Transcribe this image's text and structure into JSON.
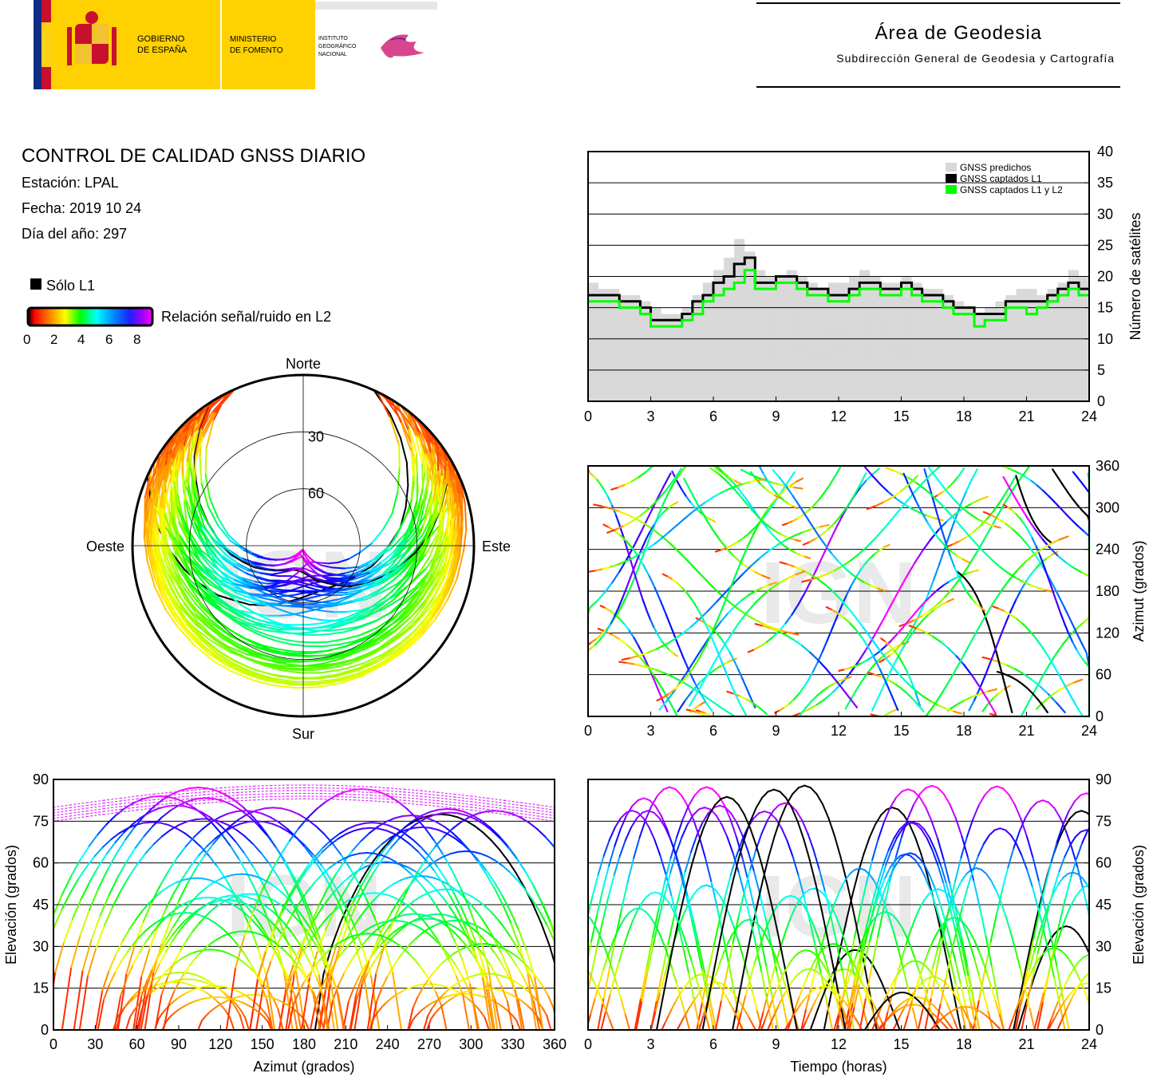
{
  "header": {
    "gov_line1": "GOBIERNO",
    "gov_line2": "DE ESPAÑA",
    "min_line1": "MINISTERIO",
    "min_line2": "DE FOMENTO",
    "inst_line1": "INSTITUTO",
    "inst_line2": "GEOGRÁFICO",
    "inst_line3": "NACIONAL",
    "area_title": "Área de Geodesia",
    "area_subtitle": "Subdirección General de Geodesia y Cartografía",
    "colors": {
      "spain_red": "#c8102e",
      "spain_yellow": "#fbd116",
      "gov_yellow": "#ffd100",
      "eu_blue": "#0e2d83"
    }
  },
  "info": {
    "title": "CONTROL DE CALIDAD GNSS DIARIO",
    "station": "Estación: LPAL",
    "date": "Fecha: 2019 10 24",
    "doy": "Día del año: 297",
    "legend_l1": "Sólo L1",
    "legend_snr": "Relación señal/ruido en L2",
    "colorbar_ticks": [
      "0",
      "2",
      "4",
      "6",
      "8"
    ]
  },
  "watermark": "IGN",
  "chart_data": [
    {
      "type": "line",
      "name": "satellites-count",
      "ylabel": "Número de satélites",
      "xlim": [
        0,
        24
      ],
      "ylim": [
        0,
        40
      ],
      "xticks": [
        "0",
        "3",
        "6",
        "9",
        "12",
        "15",
        "18",
        "21",
        "24"
      ],
      "yticks": [
        "0",
        "5",
        "10",
        "15",
        "20",
        "25",
        "30",
        "35",
        "40"
      ],
      "legend": [
        "GNSS predichos",
        "GNSS captados L1",
        "GNSS captados L1 y L2"
      ],
      "legend_placement": "top-right",
      "colors": {
        "predicted": "#d9d9d9",
        "l1": "#000000",
        "l1l2": "#00ff00"
      },
      "x": [
        0,
        0.5,
        1,
        1.5,
        2,
        2.5,
        3,
        3.5,
        4,
        4.5,
        5,
        5.5,
        6,
        6.5,
        7,
        7.5,
        8,
        8.5,
        9,
        9.5,
        10,
        10.5,
        11,
        11.5,
        12,
        12.5,
        13,
        13.5,
        14,
        14.5,
        15,
        15.5,
        16,
        16.5,
        17,
        17.5,
        18,
        18.5,
        19,
        19.5,
        20,
        20.5,
        21,
        21.5,
        22,
        22.5,
        23,
        23.5,
        24
      ],
      "series": [
        {
          "name": "GNSS predichos",
          "values": [
            19,
            18,
            18,
            17,
            17,
            16,
            15,
            14,
            14,
            15,
            17,
            19,
            21,
            23,
            26,
            24,
            21,
            20,
            20,
            21,
            20,
            19,
            18,
            19,
            19,
            20,
            21,
            20,
            19,
            19,
            20,
            19,
            18,
            18,
            17,
            16,
            15,
            14,
            15,
            16,
            17,
            18,
            18,
            17,
            18,
            19,
            21,
            20,
            19
          ]
        },
        {
          "name": "GNSS captados L1",
          "values": [
            17,
            17,
            17,
            16,
            16,
            15,
            13,
            13,
            13,
            14,
            16,
            17,
            19,
            20,
            22,
            23,
            19,
            19,
            20,
            20,
            19,
            18,
            18,
            17,
            17,
            18,
            19,
            19,
            18,
            18,
            19,
            18,
            17,
            17,
            16,
            15,
            15,
            14,
            14,
            14,
            16,
            16,
            16,
            16,
            17,
            18,
            19,
            18,
            18
          ]
        },
        {
          "name": "GNSS captados L1 y L2",
          "values": [
            16,
            16,
            16,
            15,
            15,
            14,
            12,
            12,
            12,
            13,
            14,
            16,
            17,
            18,
            19,
            21,
            18,
            18,
            19,
            19,
            18,
            17,
            17,
            16,
            16,
            17,
            18,
            18,
            17,
            17,
            18,
            17,
            16,
            16,
            15,
            14,
            14,
            12,
            13,
            13,
            15,
            15,
            14,
            15,
            16,
            17,
            18,
            17,
            17
          ]
        }
      ]
    },
    {
      "type": "scatter",
      "name": "skyplot",
      "labels": {
        "north": "Norte",
        "south": "Sur",
        "east": "Este",
        "west": "Oeste",
        "ring30": "30",
        "ring60": "60"
      },
      "colorscale": "Relación señal/ruido en L2 (0-8)"
    },
    {
      "type": "scatter",
      "name": "azimuth-vs-time",
      "ylabel": "Azimut (grados)",
      "xlim": [
        0,
        24
      ],
      "ylim": [
        0,
        360
      ],
      "xticks": [
        "0",
        "3",
        "6",
        "9",
        "12",
        "15",
        "18",
        "21",
        "24"
      ],
      "yticks": [
        "0",
        "60",
        "120",
        "180",
        "240",
        "300",
        "360"
      ]
    },
    {
      "type": "scatter",
      "name": "elevation-vs-azimuth",
      "xlabel": "Azimut (grados)",
      "ylabel": "Elevación (grados)",
      "xlim": [
        0,
        360
      ],
      "ylim": [
        0,
        90
      ],
      "xticks": [
        "0",
        "30",
        "60",
        "90",
        "120",
        "150",
        "180",
        "210",
        "240",
        "270",
        "300",
        "330",
        "360"
      ],
      "yticks": [
        "0",
        "15",
        "30",
        "45",
        "60",
        "75",
        "90"
      ]
    },
    {
      "type": "scatter",
      "name": "elevation-vs-time",
      "xlabel": "Tiempo (horas)",
      "ylabel": "Elevación (grados)",
      "xlim": [
        0,
        24
      ],
      "ylim": [
        0,
        90
      ],
      "xticks": [
        "0",
        "3",
        "6",
        "9",
        "12",
        "15",
        "18",
        "21",
        "24"
      ],
      "yticks": [
        "0",
        "15",
        "30",
        "45",
        "60",
        "75",
        "90"
      ]
    }
  ]
}
